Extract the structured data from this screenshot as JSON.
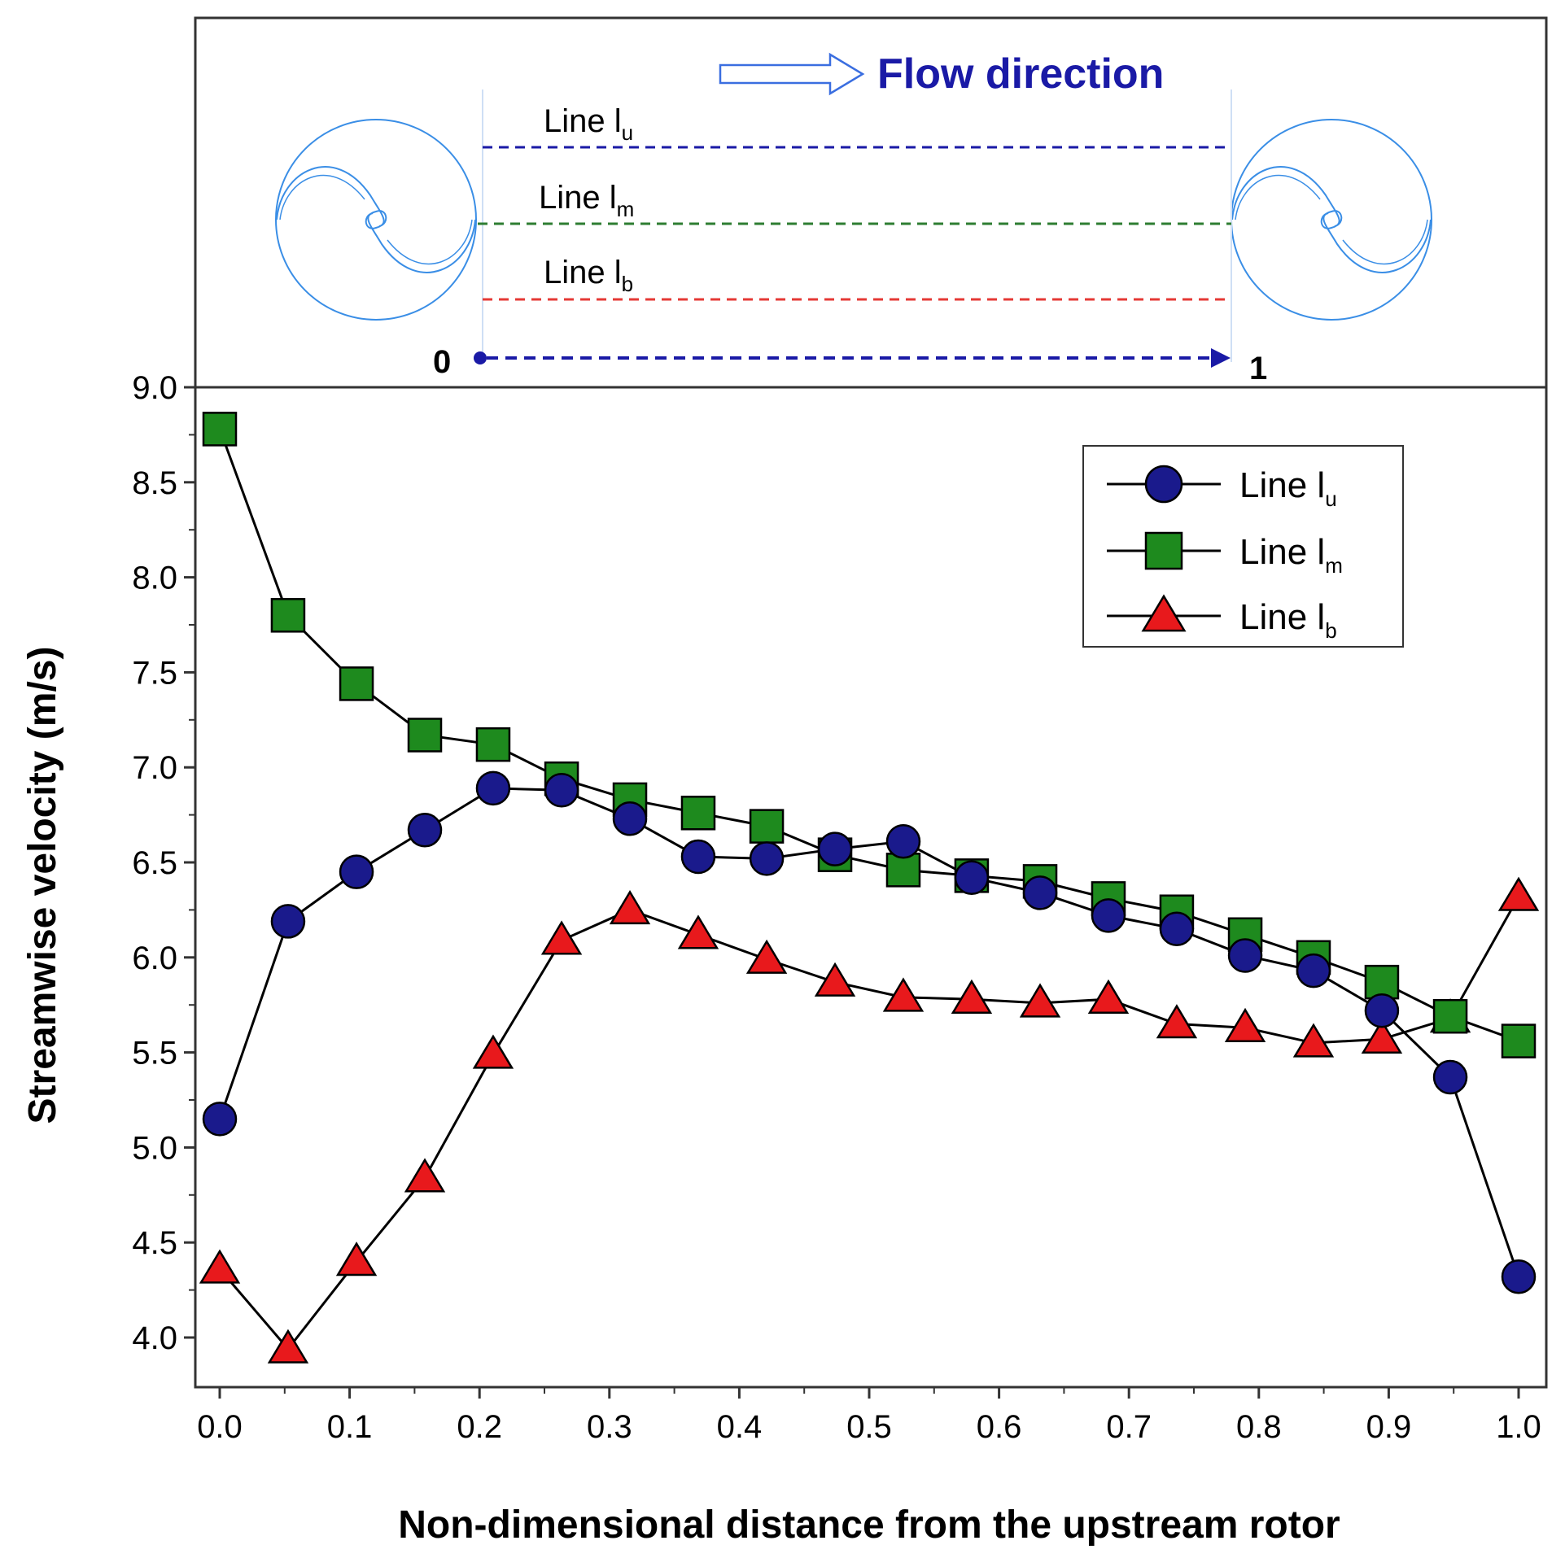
{
  "diagram": {
    "flow_label": "Flow direction",
    "line_labels": [
      {
        "main": "Line l",
        "sub": "u"
      },
      {
        "main": "Line l",
        "sub": "m"
      },
      {
        "main": "Line l",
        "sub": "b"
      }
    ],
    "start_label": "0",
    "end_label": "1",
    "colors": {
      "rotor": "#3a8ee6",
      "line_u": "#1a1aa6",
      "line_m": "#2e7d32",
      "line_b": "#e53935",
      "axis_arrow": "#1a1aa6",
      "flow_text": "#1a1aa6",
      "flow_arrow": "#3a6ee0"
    }
  },
  "chart_data": {
    "type": "line",
    "xlabel": "Non-dimensional distance from the upstream rotor",
    "ylabel": "Streamwise velocity (m/s)",
    "xlim": [
      -0.025,
      1.015
    ],
    "ylim": [
      3.7,
      9.0
    ],
    "x_ticks": [
      "0.0",
      "0.1",
      "0.2",
      "0.3",
      "0.4",
      "0.5",
      "0.6",
      "0.7",
      "0.8",
      "0.9",
      "1.0"
    ],
    "y_ticks": [
      "4.0",
      "4.5",
      "5.0",
      "5.5",
      "6.0",
      "6.5",
      "7.0",
      "7.5",
      "8.0",
      "8.5",
      "9.0"
    ],
    "x": [
      0.0,
      0.0526,
      0.1053,
      0.1579,
      0.2105,
      0.2632,
      0.3158,
      0.3684,
      0.4211,
      0.4737,
      0.5263,
      0.5789,
      0.6316,
      0.6842,
      0.7368,
      0.7895,
      0.8421,
      0.8947,
      0.9474,
      1.0
    ],
    "series": [
      {
        "name": "Line l",
        "sub": "u",
        "marker": "circle",
        "color": "#1a1a8c",
        "values": [
          5.15,
          6.19,
          6.45,
          6.67,
          6.89,
          6.88,
          6.73,
          6.53,
          6.52,
          6.57,
          6.61,
          6.42,
          6.34,
          6.22,
          6.15,
          6.01,
          5.93,
          5.72,
          5.37,
          4.32
        ]
      },
      {
        "name": "Line l",
        "sub": "m",
        "marker": "square",
        "color": "#1e8a1e",
        "values": [
          8.78,
          7.8,
          7.44,
          7.17,
          7.12,
          6.94,
          6.83,
          6.76,
          6.69,
          6.54,
          6.46,
          6.43,
          6.4,
          6.31,
          6.24,
          6.12,
          6.0,
          5.87,
          5.69,
          5.56
        ]
      },
      {
        "name": "Line l",
        "sub": "b",
        "marker": "triangle",
        "color": "#e8191c",
        "values": [
          4.36,
          3.94,
          4.4,
          4.84,
          5.49,
          6.09,
          6.25,
          6.12,
          5.99,
          5.87,
          5.79,
          5.78,
          5.76,
          5.78,
          5.65,
          5.63,
          5.55,
          5.57,
          5.68,
          6.32
        ]
      }
    ],
    "legend_position": "top-right"
  }
}
